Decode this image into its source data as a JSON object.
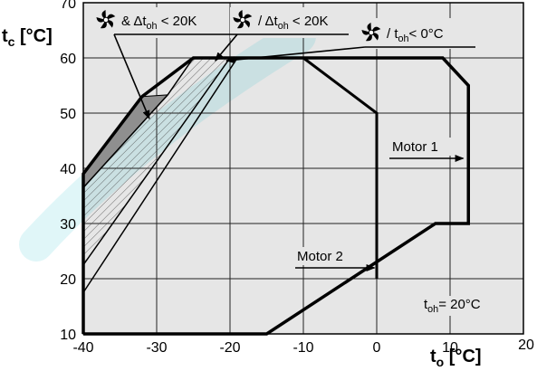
{
  "chart_data": {
    "type": "line",
    "title": "",
    "xlabel": {
      "sym": "t",
      "sub": "o",
      "unit": " [°C]"
    },
    "ylabel": {
      "sym": "t",
      "sub": "c",
      "unit": " [°C]"
    },
    "xlim": [
      -40,
      20
    ],
    "ylim": [
      10,
      70
    ],
    "x_ticks": [
      -40,
      -30,
      -20,
      -10,
      0,
      10,
      20
    ],
    "y_ticks": [
      10,
      20,
      30,
      40,
      50,
      60,
      70
    ],
    "grid": true,
    "series": [
      {
        "name": "Motor 1",
        "points": [
          [
            -40,
            10
          ],
          [
            -15,
            10
          ],
          [
            8,
            30
          ],
          [
            12.5,
            30
          ],
          [
            12.5,
            55
          ],
          [
            9,
            60
          ],
          [
            5,
            60
          ],
          [
            -25,
            60
          ],
          [
            -32,
            53
          ],
          [
            -40,
            39
          ],
          [
            -40,
            10
          ]
        ]
      },
      {
        "name": "Motor 2",
        "points": [
          [
            -40,
            10
          ],
          [
            -15,
            10
          ],
          [
            0,
            20
          ],
          [
            0,
            50
          ],
          [
            -10,
            60
          ]
        ]
      },
      {
        "name": "& Δt_oh < 20K",
        "points": [
          [
            -40,
            39
          ],
          [
            -32,
            53
          ],
          [
            -28.5,
            53.3
          ],
          [
            -40,
            36.5
          ]
        ]
      },
      {
        "name": "/ Δt_oh < 20K",
        "points": [
          [
            -40,
            36.5
          ],
          [
            -28.5,
            53.3
          ],
          [
            -25,
            60
          ],
          [
            -20,
            60
          ],
          [
            -40,
            22.5
          ]
        ]
      },
      {
        "name": "/ t_oh < 0°C",
        "points": [
          [
            -40,
            17.5
          ],
          [
            -19,
            60
          ]
        ]
      }
    ],
    "annotations": [
      {
        "parts": [
          {
            "t": "& Δt"
          },
          {
            "t": "oh",
            "sub": true
          },
          {
            "t": " < 20K"
          }
        ],
        "fan_icon": true
      },
      {
        "parts": [
          {
            "t": "/ Δt"
          },
          {
            "t": "oh",
            "sub": true
          },
          {
            "t": " < 20K"
          }
        ],
        "fan_icon": true
      },
      {
        "parts": [
          {
            "t": "/ t"
          },
          {
            "t": "oh",
            "sub": true
          },
          {
            "t": "< 0°C"
          }
        ],
        "fan_icon": true
      },
      {
        "parts": [
          {
            "t": "Motor 1"
          }
        ]
      },
      {
        "parts": [
          {
            "t": "Motor 2"
          }
        ]
      },
      {
        "parts": [
          {
            "t": "t"
          },
          {
            "t": "oh",
            "sub": true
          },
          {
            "t": "= 20°C"
          }
        ]
      }
    ],
    "colors": {
      "grid": "#222222",
      "background": "#e6e6e6",
      "fill_dark": "#8f8f8f",
      "accent": "#00b7c6"
    }
  }
}
